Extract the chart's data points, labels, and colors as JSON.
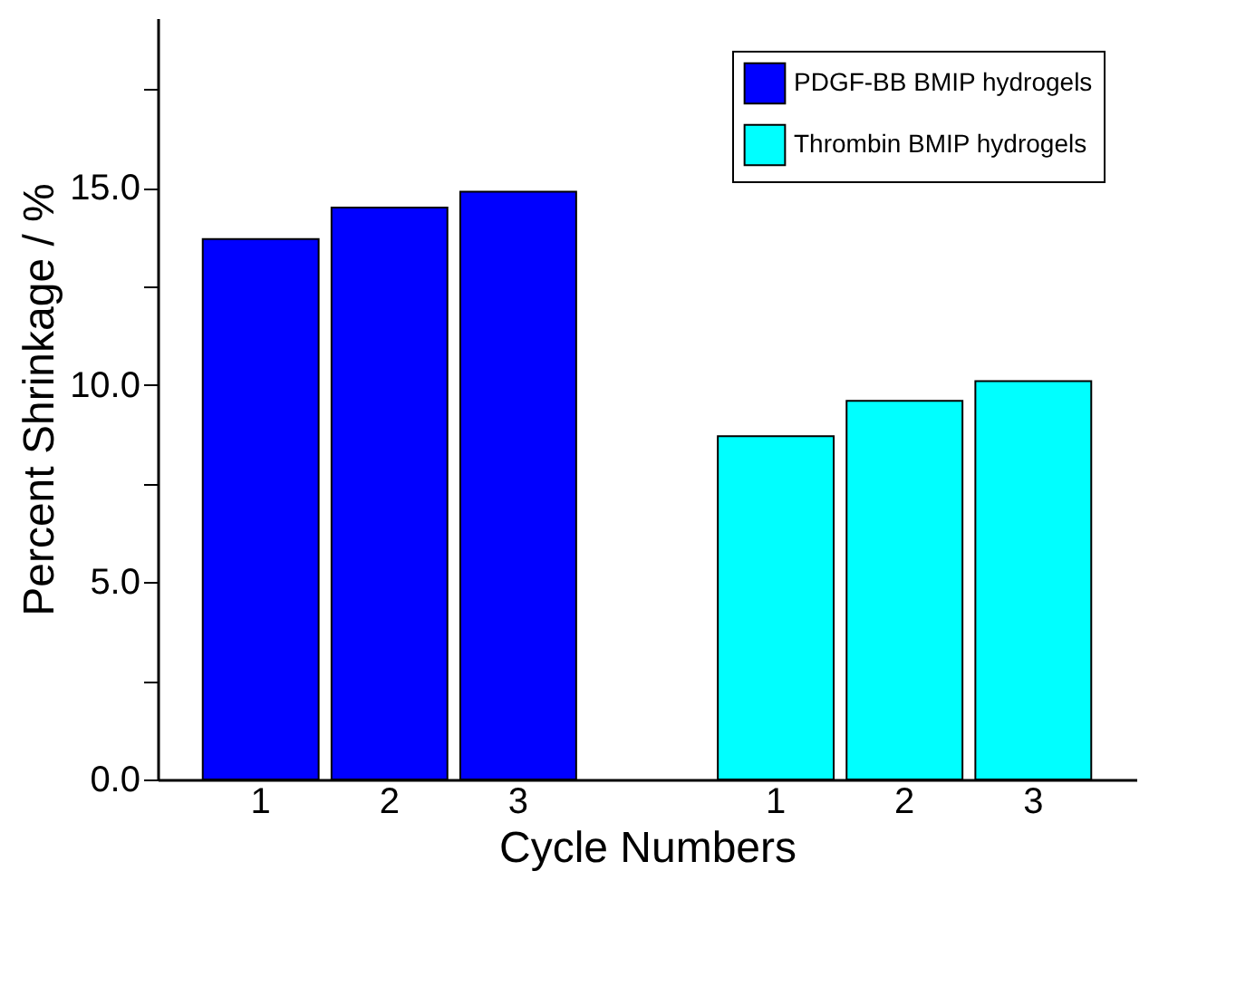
{
  "chart_data": {
    "type": "bar",
    "xlabel": "Cycle Numbers",
    "ylabel": "Percent Shrinkage / %",
    "categories": [
      "1",
      "2",
      "3",
      null,
      "1",
      "2",
      "3"
    ],
    "series": [
      {
        "name": "PDGF-BB BMIP hydrogels",
        "color": "#0000ff",
        "values": [
          13.7,
          14.5,
          14.9,
          null,
          null,
          null,
          null
        ]
      },
      {
        "name": "Thrombin BMIP hydrogels",
        "color": "#00ffff",
        "values": [
          null,
          null,
          null,
          null,
          8.7,
          9.6,
          10.1
        ]
      }
    ],
    "ylim": [
      0,
      19.3
    ],
    "yticks": [
      {
        "value": 0,
        "label": "0.0"
      },
      {
        "value": 2.5,
        "label": null
      },
      {
        "value": 5,
        "label": "5.0"
      },
      {
        "value": 7.5,
        "label": null
      },
      {
        "value": 10,
        "label": "10.0"
      },
      {
        "value": 12.5,
        "label": null
      },
      {
        "value": 15,
        "label": "15.0"
      },
      {
        "value": 17.5,
        "label": null
      }
    ],
    "grid": false,
    "legend": "top right"
  }
}
